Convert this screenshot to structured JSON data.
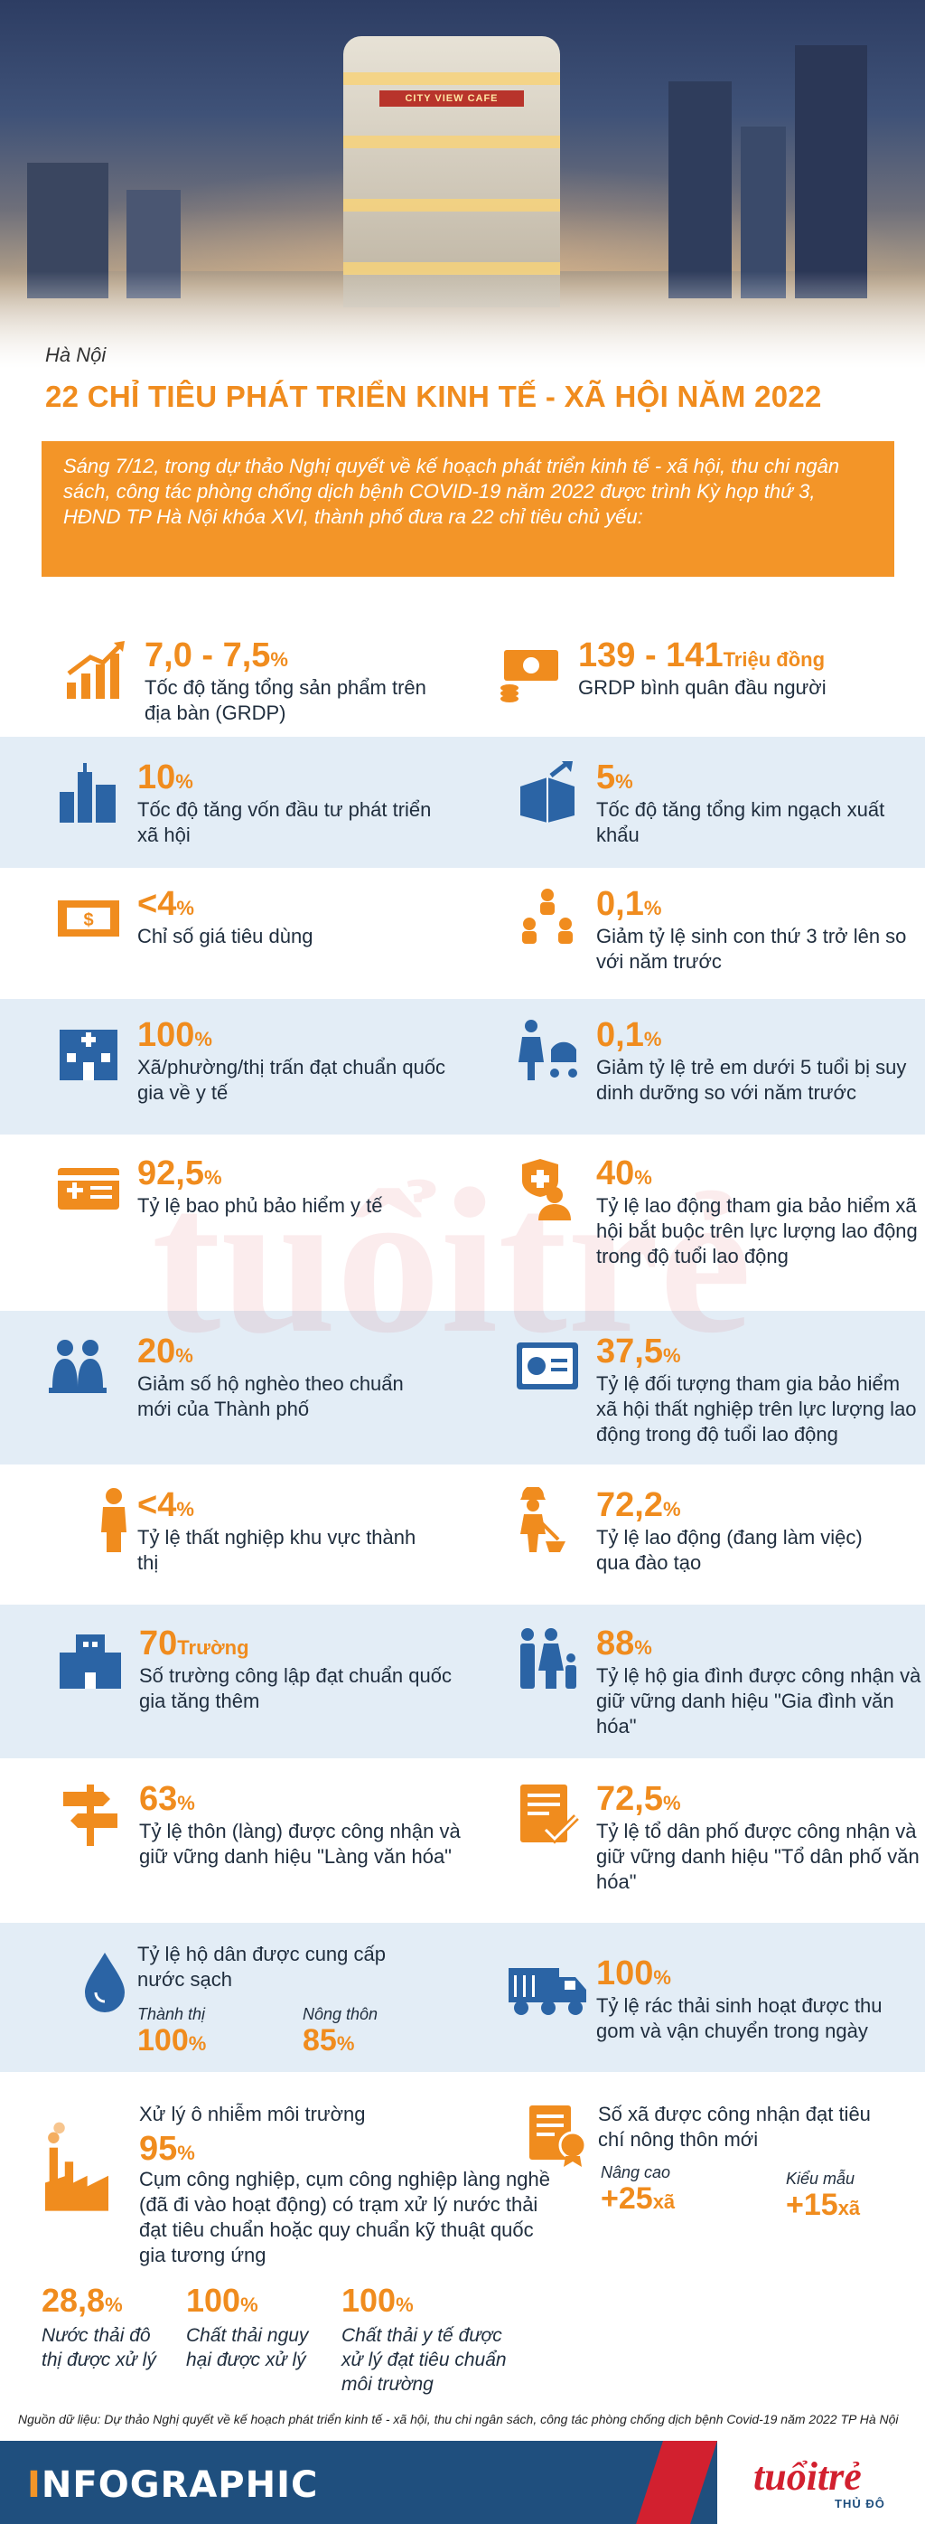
{
  "hero": {
    "sign": "CITY VIEW CAFE"
  },
  "header": {
    "kicker": "Hà Nội",
    "title": "22 CHỈ TIÊU PHÁT TRIỂN KINH TẾ - XÃ HỘI NĂM 2022",
    "intro": "Sáng 7/12, trong dự thảo Nghị quyết về kế hoạch phát triển kinh tế - xã hội, thu chi ngân sách, công tác phòng chống dịch bệnh COVID-19 năm 2022 được trình Kỳ họp thứ 3, HĐND TP Hà Nội khóa XVI, thành phố đưa ra 22 chỉ tiêu chủ yếu:"
  },
  "items": [
    {
      "value": "7,0 - 7,5",
      "unit": "%",
      "label": "Tốc độ tăng tổng sản phẩm trên địa bàn (GRDP)",
      "icon": "growth-chart-icon"
    },
    {
      "value": "139 - 141",
      "unit": "Triệu đồng",
      "label": "GRDP bình quân đầu người",
      "icon": "money-stack-icon"
    },
    {
      "value": "10",
      "unit": "%",
      "label": "Tốc độ tăng vốn đầu tư phát triển xã hội",
      "icon": "city-buildings-icon"
    },
    {
      "value": "5",
      "unit": "%",
      "label": "Tốc độ tăng tổng kim ngạch xuất khẩu",
      "icon": "export-box-icon"
    },
    {
      "value": "<4",
      "unit": "%",
      "label": "Chỉ số giá tiêu dùng",
      "icon": "banknote-icon"
    },
    {
      "value": "0,1",
      "unit": "%",
      "label": "Giảm tỷ lệ sinh con thứ 3 trở lên so với năm trước",
      "icon": "family-children-icon"
    },
    {
      "value": "100",
      "unit": "%",
      "label": "Xã/phường/thị trấn đạt chuẩn quốc gia về y tế",
      "icon": "hospital-icon"
    },
    {
      "value": "0,1",
      "unit": "%",
      "label": "Giảm tỷ lệ trẻ em dưới 5 tuổi bị suy dinh dưỡng so với năm trước",
      "icon": "mother-stroller-icon"
    },
    {
      "value": "92,5",
      "unit": "%",
      "label": "Tỷ lệ bao phủ bảo hiểm y tế",
      "icon": "health-insurance-card-icon"
    },
    {
      "value": "40",
      "unit": "%",
      "label": "Tỷ lệ lao động tham gia bảo hiểm xã hội bắt buộc trên lực lượng lao động trong độ tuổi lao động",
      "icon": "social-insurance-icon"
    },
    {
      "value": "20",
      "unit": "%",
      "label": "Giảm số hộ nghèo theo chuẩn mới của Thành phố",
      "icon": "poor-household-icon"
    },
    {
      "value": "37,5",
      "unit": "%",
      "label": "Tỷ lệ đối tượng tham gia bảo hiểm xã hội thất nghiệp trên lực lượng lao động trong độ tuổi lao động",
      "icon": "unemployment-insurance-card-icon"
    },
    {
      "value": "<4",
      "unit": "%",
      "label": "Tỷ lệ thất nghiệp khu vực thành thị",
      "icon": "jobless-person-icon"
    },
    {
      "value": "72,2",
      "unit": "%",
      "label": "Tỷ lệ lao động (đang làm việc) qua đào tạo",
      "icon": "worker-icon"
    },
    {
      "value": "70",
      "unit": "Trường",
      "label": "Số trường công lập đạt chuẩn quốc gia tăng thêm",
      "icon": "school-icon"
    },
    {
      "value": "88",
      "unit": "%",
      "label": "Tỷ lệ hộ gia đình được công nhận và giữ vững danh hiệu \"Gia đình văn hóa\"",
      "icon": "family-icon"
    },
    {
      "value": "63",
      "unit": "%",
      "label": "Tỷ lệ thôn (làng) được công nhận và giữ vững danh hiệu \"Làng văn hóa\"",
      "icon": "signpost-icon"
    },
    {
      "value": "72,5",
      "unit": "%",
      "label": "Tỷ lệ tổ dân phố được công nhận và giữ vững danh hiệu \"Tổ dân phố văn hóa\"",
      "icon": "checklist-icon"
    }
  ],
  "water": {
    "label": "Tỷ lệ hộ dân được cung cấp nước sạch",
    "urban_label": "Thành thị",
    "urban_value": "100",
    "urban_unit": "%",
    "rural_label": "Nông thôn",
    "rural_value": "85",
    "rural_unit": "%",
    "icon": "water-drop-icon"
  },
  "waste": {
    "value": "100",
    "unit": "%",
    "label": "Tỷ lệ rác thải sinh hoạt được thu gom và vận chuyển trong ngày",
    "icon": "garbage-truck-icon"
  },
  "pollution": {
    "title": "Xử lý ô nhiễm môi trường",
    "value": "95",
    "unit": "%",
    "label": "Cụm công nghiệp, cụm công nghiệp làng nghề (đã đi vào hoạt động) có trạm xử lý nước thải đạt tiêu chuẩn hoặc quy chuẩn kỹ thuật quốc gia tương ứng",
    "icon": "factory-icon",
    "subs": [
      {
        "value": "28,8",
        "unit": "%",
        "label": "Nước thải đô thị được xử lý"
      },
      {
        "value": "100",
        "unit": "%",
        "label": "Chất thải nguy hại được xử lý"
      },
      {
        "value": "100",
        "unit": "%",
        "label": "Chất thải y tế được xử lý đạt tiêu chuẩn môi trường"
      }
    ]
  },
  "rural": {
    "label": "Số xã được công nhận đạt tiêu chí nông thôn mới",
    "advanced_label": "Nâng cao",
    "advanced_value": "+25",
    "advanced_unit": "xã",
    "model_label": "Kiểu mẫu",
    "model_value": "+15",
    "model_unit": "xã",
    "icon": "certificate-icon"
  },
  "source": "Nguồn dữ liệu: Dự thảo Nghị quyết về kế hoạch phát triển kinh tế - xã hội, thu chi ngân sách, công tác phòng chống dịch bệnh Covid-19 năm 2022 TP Hà Nội",
  "footer": {
    "brand_first": "I",
    "brand_rest": "NFOGRAPHIC",
    "logo": "tuổitrẻ",
    "logo_sub": "THỦ ĐÔ"
  },
  "colors": {
    "accent": "#f08c1e",
    "band": "#e3edf6",
    "icon": "#2b64a5",
    "footer": "#1f4f7e",
    "logo_red": "#d2202f"
  }
}
